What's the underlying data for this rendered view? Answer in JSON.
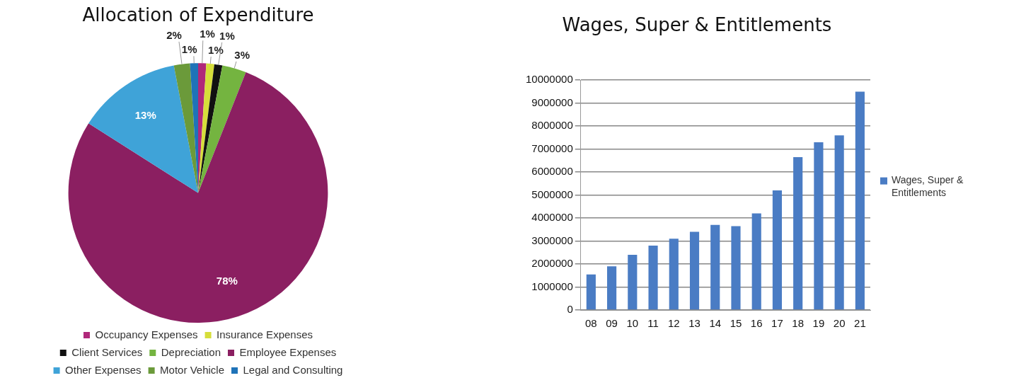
{
  "chart_data": [
    {
      "type": "pie",
      "title": "Allocation of Expenditure",
      "categories": [
        "Occupancy Expenses",
        "Insurance Expenses",
        "Client Services",
        "Depreciation",
        "Employee Expenses",
        "Other Expenses",
        "Motor Vehicle",
        "Legal and Consulting"
      ],
      "values": [
        1,
        1,
        1,
        3,
        78,
        13,
        2,
        1
      ],
      "value_labels": [
        "1%",
        "1%",
        "1%",
        "3%",
        "78%",
        "13%",
        "2%",
        "1%"
      ],
      "colors": [
        "#b0287a",
        "#d6de3a",
        "#111111",
        "#74b440",
        "#8b1f61",
        "#3fa3d8",
        "#6b9a3a",
        "#1f73b8"
      ],
      "legend": "bottom"
    },
    {
      "type": "bar",
      "title": "Wages, Super & Entitlements",
      "categories": [
        "08",
        "09",
        "10",
        "11",
        "12",
        "13",
        "14",
        "15",
        "16",
        "17",
        "18",
        "19",
        "20",
        "21"
      ],
      "series": [
        {
          "name": "Wages, Super & Entitlements",
          "color": "#4a7cc4",
          "values": [
            1550000,
            1900000,
            2400000,
            2800000,
            3100000,
            3400000,
            3700000,
            3650000,
            4200000,
            5200000,
            6650000,
            7300000,
            7600000,
            9500000
          ]
        }
      ],
      "ylim": [
        0,
        10000000
      ],
      "yticks": [
        0,
        1000000,
        2000000,
        3000000,
        4000000,
        5000000,
        6000000,
        7000000,
        8000000,
        9000000,
        10000000
      ],
      "grid": "y",
      "legend": "right"
    }
  ]
}
